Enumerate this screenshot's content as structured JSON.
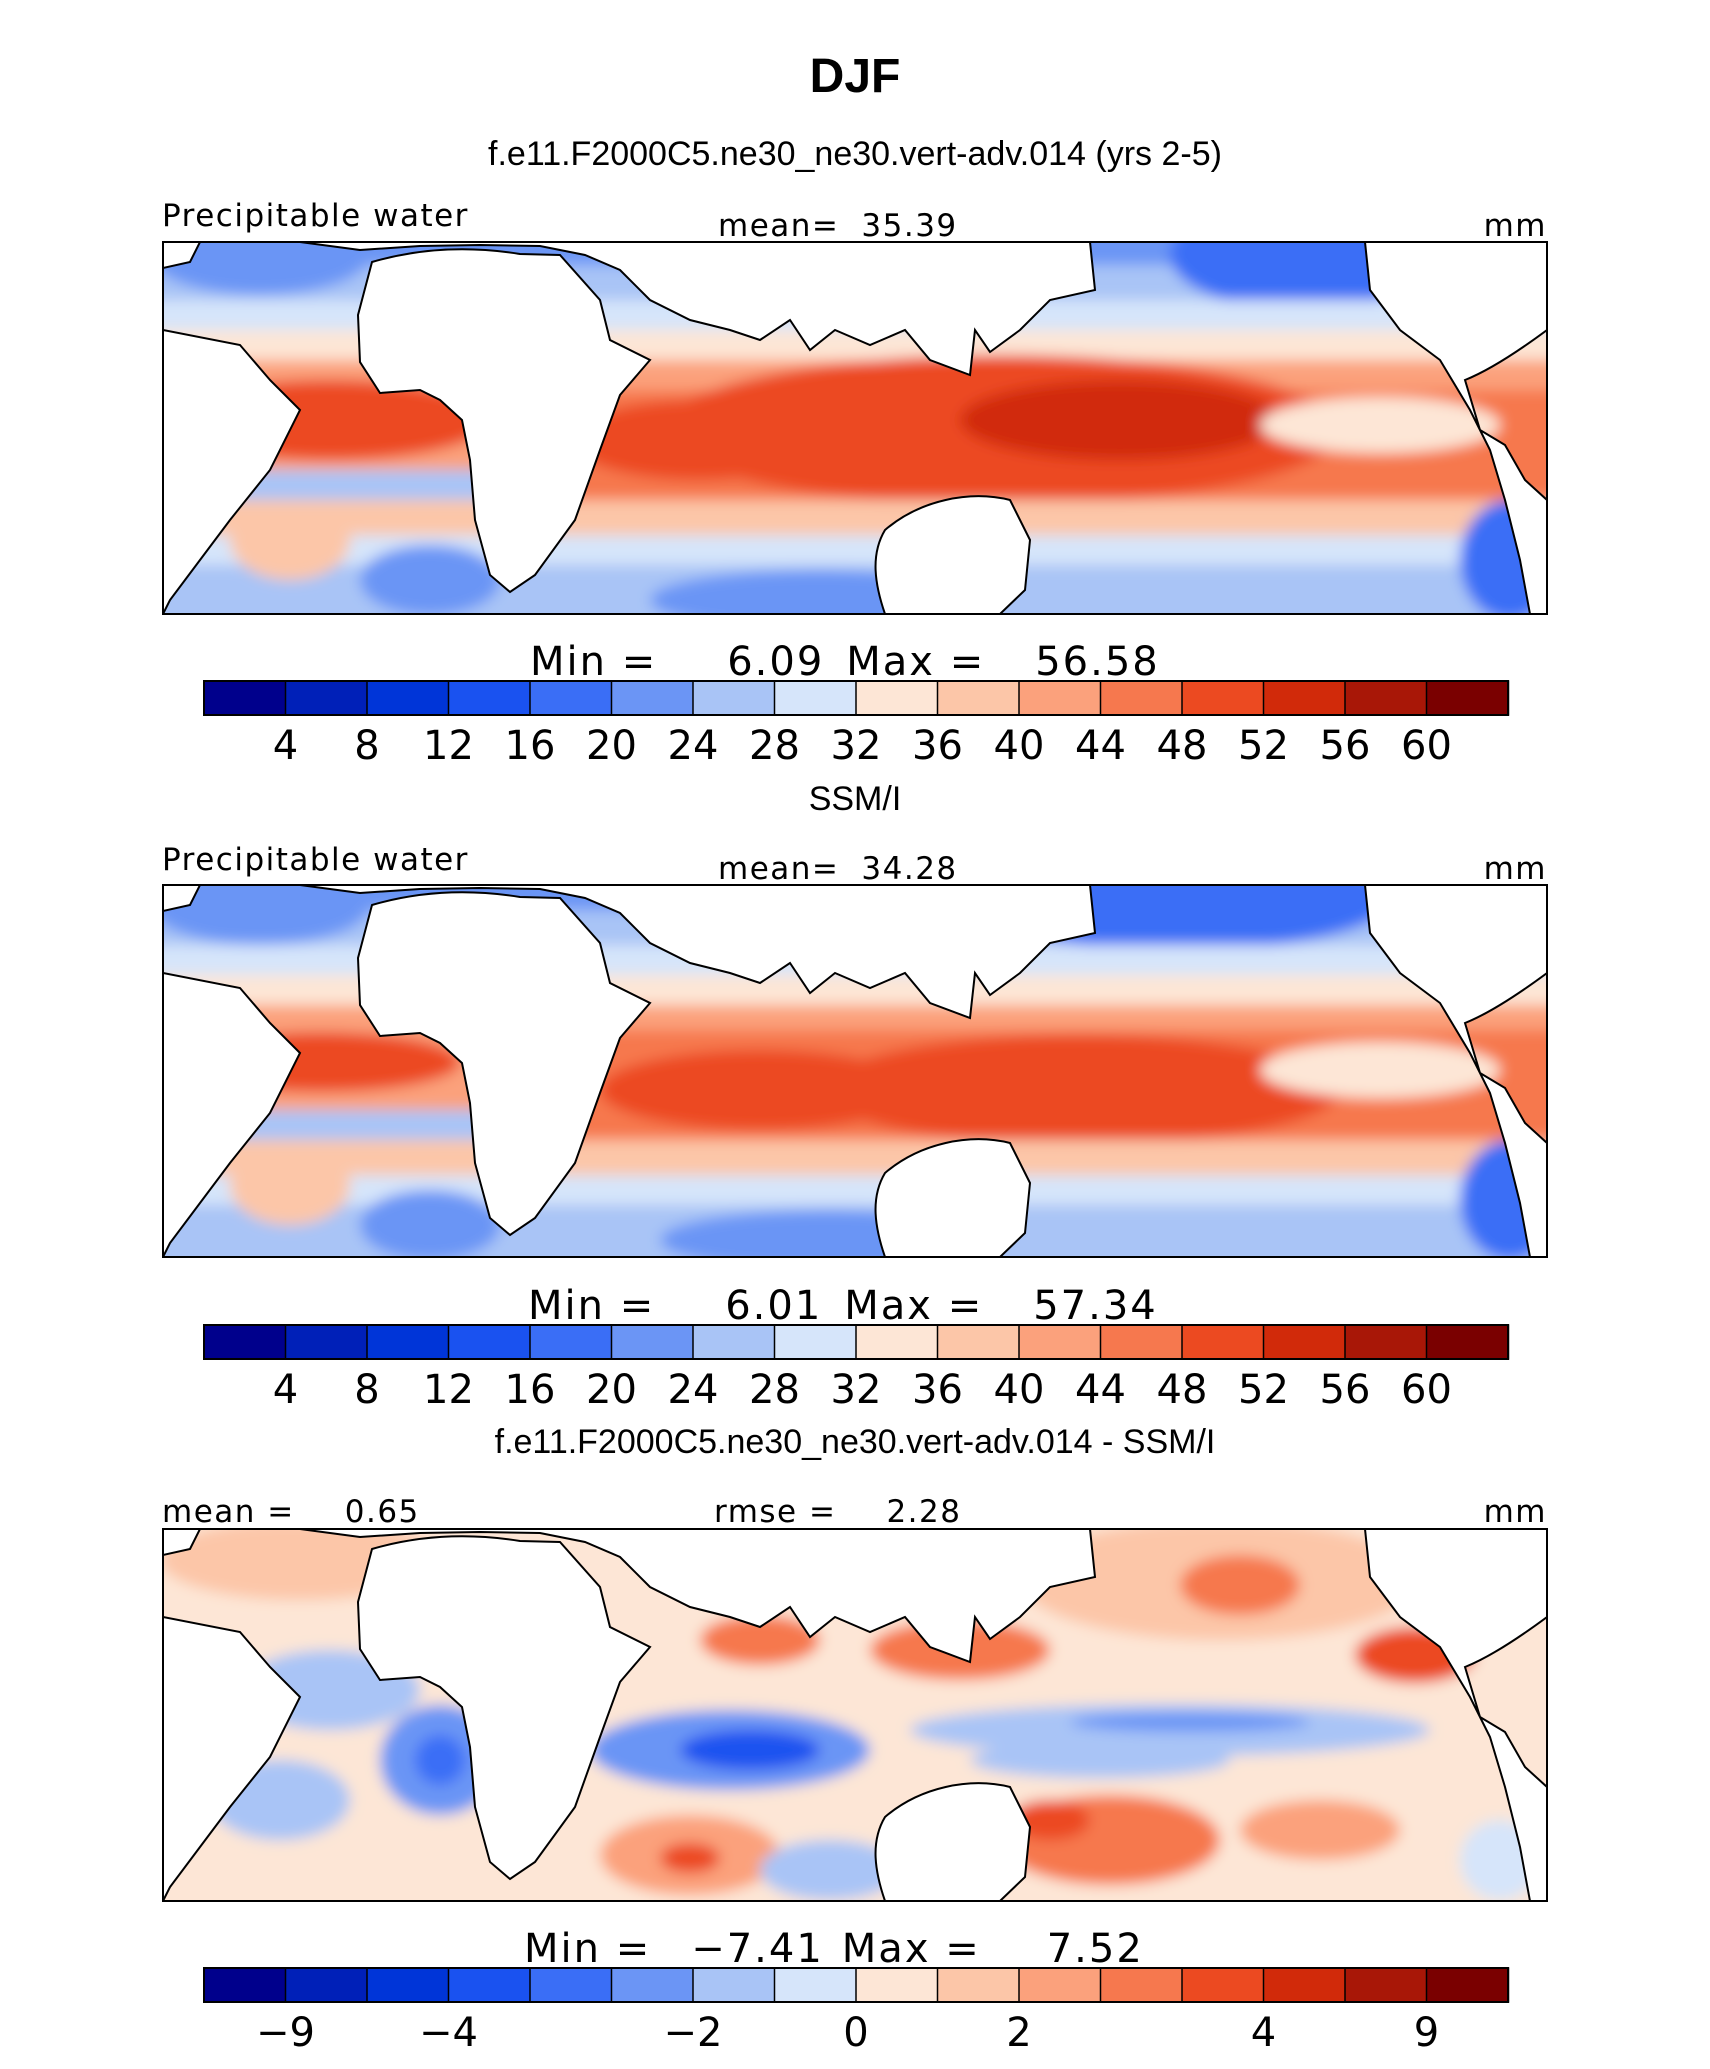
{
  "figure_title": "DJF",
  "chart_data": [
    {
      "type": "heatmap",
      "subtitle": "f.e11.F2000C5.ne30_ne30.vert-adv.014 (yrs 2-5)",
      "variable_label": "Precipitable water",
      "stat_left_label": "",
      "stat_left_value": "",
      "stat_center_label": "mean=",
      "stat_center_value": "35.39",
      "units": "mm",
      "min_label": "Min =",
      "min_value": "6.09",
      "max_label": "Max =",
      "max_value": "56.58",
      "colorbar_ticks": [
        "4",
        "8",
        "12",
        "16",
        "20",
        "24",
        "28",
        "32",
        "36",
        "40",
        "44",
        "48",
        "52",
        "56",
        "60"
      ],
      "colorbar_colors": [
        "#00008c",
        "#0020b8",
        "#0035d8",
        "#1a52f0",
        "#3a6ef6",
        "#6b95f5",
        "#a9c4f6",
        "#d6e5fa",
        "#fde6d6",
        "#fcc6a8",
        "#fba17c",
        "#f6784e",
        "#ec4a21",
        "#d12a0a",
        "#a81707",
        "#7a0000"
      ],
      "field_mean": 35.39,
      "field_min": 6.09,
      "field_max": 56.58
    },
    {
      "type": "heatmap",
      "subtitle": "SSM/I",
      "variable_label": "Precipitable water",
      "stat_left_label": "",
      "stat_left_value": "",
      "stat_center_label": "mean=",
      "stat_center_value": "34.28",
      "units": "mm",
      "min_label": "Min =",
      "min_value": "6.01",
      "max_label": "Max =",
      "max_value": "57.34",
      "colorbar_ticks": [
        "4",
        "8",
        "12",
        "16",
        "20",
        "24",
        "28",
        "32",
        "36",
        "40",
        "44",
        "48",
        "52",
        "56",
        "60"
      ],
      "colorbar_colors": [
        "#00008c",
        "#0020b8",
        "#0035d8",
        "#1a52f0",
        "#3a6ef6",
        "#6b95f5",
        "#a9c4f6",
        "#d6e5fa",
        "#fde6d6",
        "#fcc6a8",
        "#fba17c",
        "#f6784e",
        "#ec4a21",
        "#d12a0a",
        "#a81707",
        "#7a0000"
      ],
      "field_mean": 34.28,
      "field_min": 6.01,
      "field_max": 57.34
    },
    {
      "type": "heatmap",
      "subtitle": "f.e11.F2000C5.ne30_ne30.vert-adv.014 - SSM/I",
      "variable_label": "",
      "stat_left_label": "mean =",
      "stat_left_value": "0.65",
      "stat_center_label": "rmse =",
      "stat_center_value": "2.28",
      "units": "mm",
      "min_label": "Min =",
      "min_value": "−7.41",
      "max_label": "Max =",
      "max_value": "7.52",
      "colorbar_ticks": [
        "−9",
        "",
        "−4",
        "",
        "−2",
        "",
        "0",
        "",
        "2",
        "",
        "4",
        "",
        "9"
      ],
      "colorbar_colors": [
        "#00008c",
        "#0020b8",
        "#0035d8",
        "#1a52f0",
        "#3a6ef6",
        "#6b95f5",
        "#a9c4f6",
        "#d6e5fa",
        "#fde6d6",
        "#fcc6a8",
        "#fba17c",
        "#f6784e",
        "#ec4a21",
        "#d12a0a",
        "#a81707",
        "#7a0000"
      ],
      "field_mean": 0.65,
      "field_rmse": 2.28,
      "field_min": -7.41,
      "field_max": 7.52
    }
  ]
}
